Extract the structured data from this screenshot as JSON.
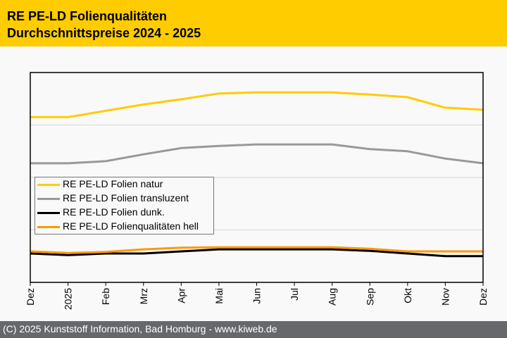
{
  "header": {
    "title_line1": "RE PE-LD Folienqualitäten",
    "title_line2": "Durchschnittspreise 2024 - 2025"
  },
  "footer": {
    "copyright": "(C) 2025 Kunststoff Information, Bad Homburg - www.kiweb.de"
  },
  "chart_data": {
    "type": "line",
    "title": "RE PE-LD Folienqualitäten Durchschnittspreise 2024 - 2025",
    "xlabel": "",
    "ylabel": "",
    "y_units": "relative (no y-axis tick labels shown; 1 unit = 1 gridline interval)",
    "ylim": [
      0,
      4
    ],
    "grid": true,
    "legend_position": "center-left",
    "x": [
      "Dez",
      "2025",
      "Feb",
      "Mrz",
      "Apr",
      "Mai",
      "Jun",
      "Jul",
      "Aug",
      "Sep",
      "Okt",
      "Nov",
      "Dez"
    ],
    "series": [
      {
        "name": "RE PE-LD Folien natur",
        "color": "#ffcc00",
        "values": [
          3.15,
          3.15,
          3.27,
          3.39,
          3.49,
          3.6,
          3.62,
          3.62,
          3.62,
          3.58,
          3.53,
          3.33,
          3.29
        ]
      },
      {
        "name": "RE PE-LD Folien transluzent",
        "color": "#999999",
        "values": [
          2.27,
          2.27,
          2.31,
          2.44,
          2.56,
          2.6,
          2.63,
          2.63,
          2.63,
          2.54,
          2.5,
          2.36,
          2.27
        ]
      },
      {
        "name": "RE PE-LD Folien dunk.",
        "color": "#000000",
        "values": [
          0.55,
          0.52,
          0.55,
          0.55,
          0.59,
          0.63,
          0.63,
          0.63,
          0.63,
          0.6,
          0.55,
          0.5,
          0.5
        ]
      },
      {
        "name": "RE PE-LD Folienqualitäten hell",
        "color": "#ff9900",
        "values": [
          0.59,
          0.56,
          0.58,
          0.63,
          0.66,
          0.67,
          0.67,
          0.67,
          0.67,
          0.64,
          0.59,
          0.59,
          0.59
        ]
      }
    ]
  }
}
